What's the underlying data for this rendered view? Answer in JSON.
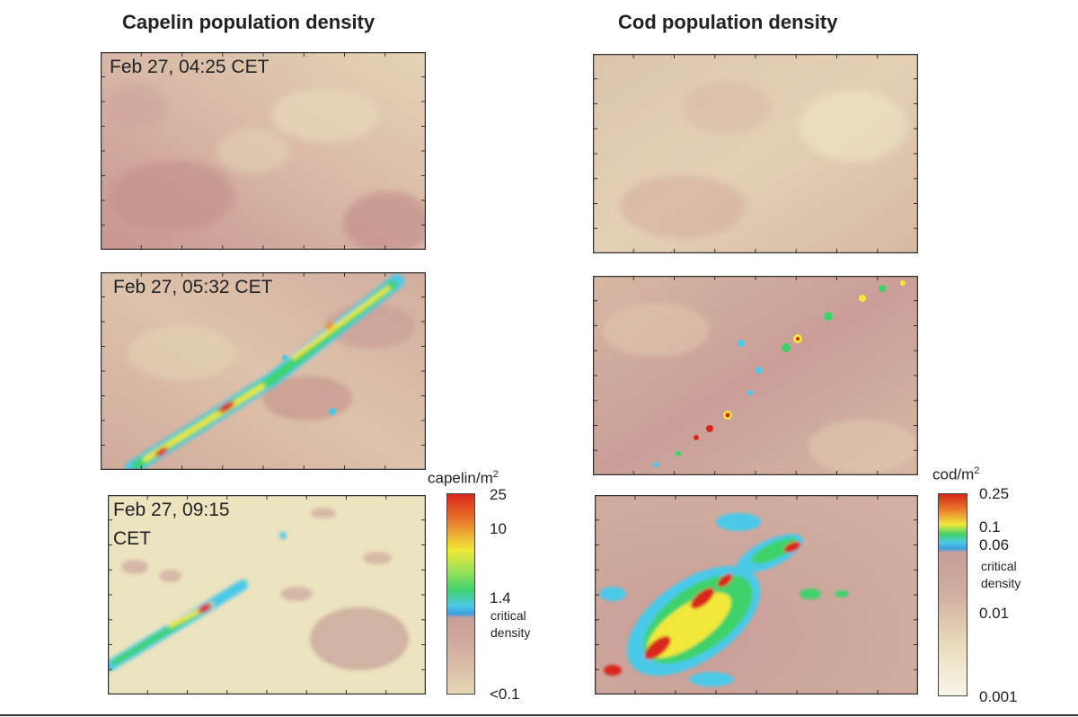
{
  "titles": {
    "capelin": "Capelin population density",
    "cod": "Cod population density"
  },
  "panels": {
    "capelin_1": {
      "label": "Feb 27, 04:25 CET"
    },
    "capelin_2": {
      "label": "Feb 27, 05:32 CET"
    },
    "capelin_3": {
      "label_line1": "Feb 27, 09:15",
      "label_line2": "CET"
    },
    "cod_1": {
      "label": ""
    },
    "cod_2": {
      "label": ""
    },
    "cod_3": {
      "label": ""
    }
  },
  "colorbar_capelin": {
    "unit_base": "capelin/m",
    "unit_exp": "2",
    "ticks": [
      "25",
      "10",
      "1.4",
      "<0.1"
    ],
    "critical_line1": "critical",
    "critical_line2": "density"
  },
  "colorbar_cod": {
    "unit_base": "cod/m",
    "unit_exp": "2",
    "ticks": [
      "0.25",
      "0.1",
      "0.06",
      "0.01",
      "0.001"
    ],
    "critical_line1": "critical",
    "critical_line2": "density"
  },
  "colors": {
    "background_dense": "#c99e97",
    "background_sparse": "#ece3bf",
    "hotspot_red": "#d9261c",
    "hotspot_yellow": "#f1e83a",
    "hotspot_green": "#3fd26a",
    "hotspot_cyan": "#4cc9e8"
  }
}
